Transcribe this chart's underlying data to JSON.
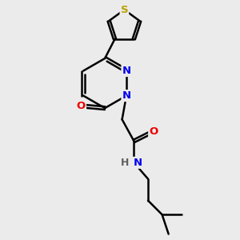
{
  "background_color": "#ebebeb",
  "bond_color": "#000000",
  "bond_width": 1.8,
  "atom_colors": {
    "S": "#b8a000",
    "N": "#0000ee",
    "O": "#ee0000",
    "C": "#000000",
    "H": "#606060"
  },
  "font_size": 8.5,
  "fig_width": 3.0,
  "fig_height": 3.0,
  "dpi": 100
}
